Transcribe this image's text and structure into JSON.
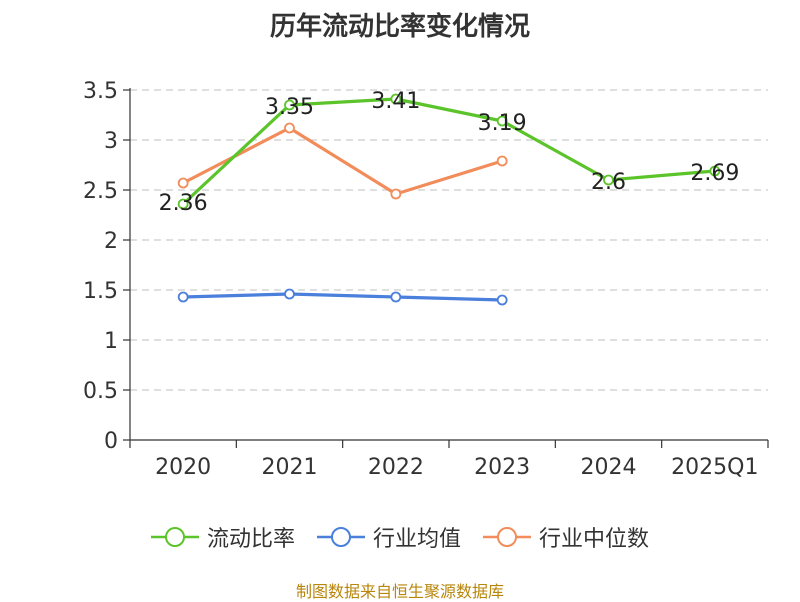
{
  "title": "历年流动比率变化情况",
  "source": "制图数据来自恒生聚源数据库",
  "chart_data": {
    "type": "line",
    "categories": [
      "2020",
      "2021",
      "2022",
      "2023",
      "2024",
      "2025Q1"
    ],
    "ylim": [
      0,
      3.5
    ],
    "yticks": [
      "0",
      "0.5",
      "1",
      "1.5",
      "2",
      "2.5",
      "3",
      "3.5"
    ],
    "grid": true,
    "legend_position": "bottom",
    "series": [
      {
        "name": "流动比率",
        "color": "#5cc42b",
        "values": [
          2.36,
          3.35,
          3.41,
          3.19,
          2.6,
          2.69
        ],
        "labels": [
          "2.36",
          "3.35",
          "3.41",
          "3.19",
          "2.6",
          "2.69"
        ]
      },
      {
        "name": "行业均值",
        "color": "#4a7fdc",
        "values": [
          1.43,
          1.46,
          1.43,
          1.4,
          null,
          null
        ]
      },
      {
        "name": "行业中位数",
        "color": "#f28c5a",
        "values": [
          2.57,
          3.12,
          2.46,
          2.79,
          null,
          null
        ]
      }
    ]
  }
}
